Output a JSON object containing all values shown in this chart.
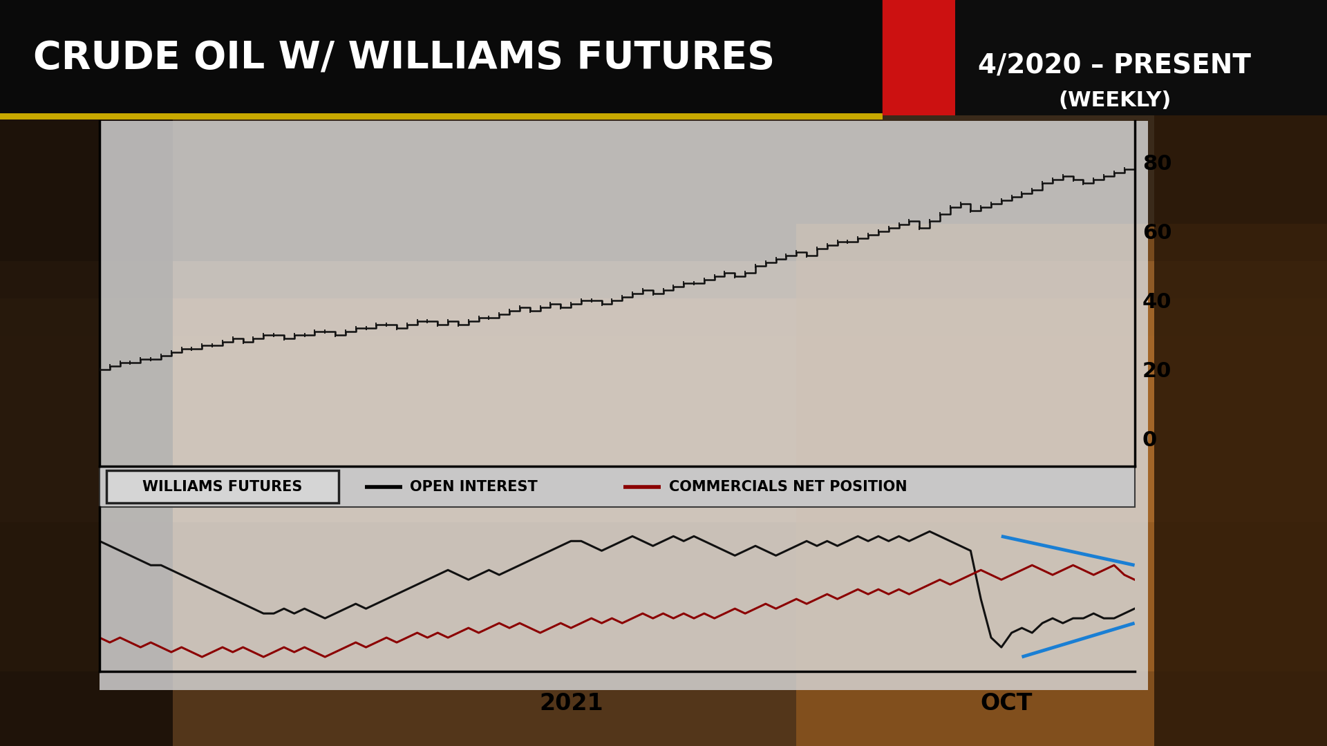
{
  "title": "CRUDE OIL W/ WILLIAMS FUTURES",
  "subtitle_date": "4/2020 – PRESENT",
  "subtitle_freq": "(WEEKLY)",
  "legend_label1": "WILLIAMS FUTURES",
  "legend_label2": "OPEN INTEREST",
  "legend_label3": "COMMERCIALS NET POSITION",
  "xlabel_mid": "2021",
  "xlabel_right": "OCT",
  "yticks_upper": [
    0,
    20,
    40,
    60,
    80
  ],
  "price_line_color": "#111111",
  "open_interest_color": "#111111",
  "commercials_color": "#8b0000",
  "blue_color": "#1a7fd4",
  "price_data": [
    20,
    21,
    22,
    22,
    23,
    23,
    24,
    25,
    26,
    26,
    27,
    27,
    28,
    29,
    28,
    29,
    30,
    30,
    29,
    30,
    30,
    31,
    31,
    30,
    31,
    32,
    32,
    33,
    33,
    32,
    33,
    34,
    34,
    33,
    34,
    33,
    34,
    35,
    35,
    36,
    37,
    38,
    37,
    38,
    39,
    38,
    39,
    40,
    40,
    39,
    40,
    41,
    42,
    43,
    42,
    43,
    44,
    45,
    45,
    46,
    47,
    48,
    47,
    48,
    50,
    51,
    52,
    53,
    54,
    53,
    55,
    56,
    57,
    57,
    58,
    59,
    60,
    61,
    62,
    63,
    61,
    63,
    65,
    67,
    68,
    66,
    67,
    68,
    69,
    70,
    71,
    72,
    74,
    75,
    76,
    75,
    74,
    75,
    76,
    77,
    78,
    80
  ],
  "oi_data": [
    62,
    61,
    60,
    59,
    58,
    57,
    57,
    56,
    55,
    54,
    53,
    52,
    51,
    50,
    49,
    48,
    47,
    47,
    48,
    47,
    48,
    47,
    46,
    47,
    48,
    49,
    48,
    49,
    50,
    51,
    52,
    53,
    54,
    55,
    56,
    55,
    54,
    55,
    56,
    55,
    56,
    57,
    58,
    59,
    60,
    61,
    62,
    62,
    61,
    60,
    61,
    62,
    63,
    62,
    61,
    62,
    63,
    62,
    63,
    62,
    61,
    60,
    59,
    60,
    61,
    60,
    59,
    60,
    61,
    62,
    61,
    62,
    61,
    62,
    63,
    62,
    63,
    62,
    63,
    62,
    63,
    64,
    63,
    62,
    61,
    60,
    50,
    42,
    40,
    43,
    44,
    43,
    45,
    46,
    45,
    46,
    46,
    47,
    46,
    46,
    47,
    48
  ],
  "comm_data": [
    42,
    41,
    42,
    41,
    40,
    41,
    40,
    39,
    40,
    39,
    38,
    39,
    40,
    39,
    40,
    39,
    38,
    39,
    40,
    39,
    40,
    39,
    38,
    39,
    40,
    41,
    40,
    41,
    42,
    41,
    42,
    43,
    42,
    43,
    42,
    43,
    44,
    43,
    44,
    45,
    44,
    45,
    44,
    43,
    44,
    45,
    44,
    45,
    46,
    45,
    46,
    45,
    46,
    47,
    46,
    47,
    46,
    47,
    46,
    47,
    46,
    47,
    48,
    47,
    48,
    49,
    48,
    49,
    50,
    49,
    50,
    51,
    50,
    51,
    52,
    51,
    52,
    51,
    52,
    51,
    52,
    53,
    54,
    53,
    54,
    55,
    56,
    55,
    54,
    55,
    56,
    57,
    56,
    55,
    56,
    57,
    56,
    55,
    56,
    57,
    55,
    54
  ],
  "n_price": 102,
  "n_lower": 102
}
